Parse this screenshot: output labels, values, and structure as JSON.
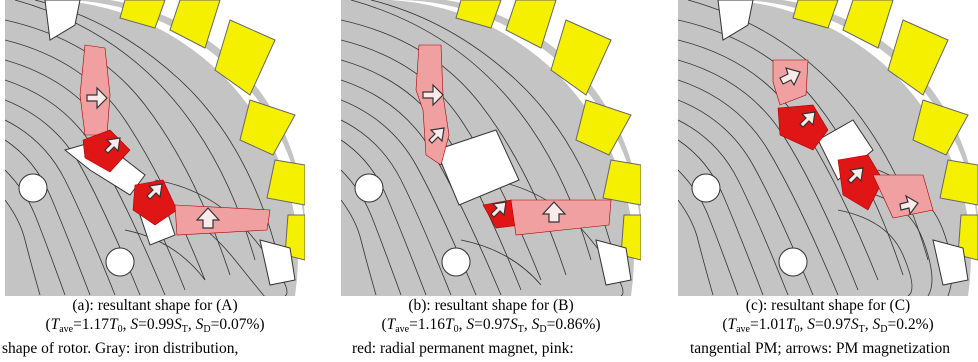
{
  "panels": [
    {
      "caption": "(a): resultant shape for (A)",
      "params": {
        "T_ave": "1.17",
        "S": "0.99",
        "S_D": "0.07%"
      }
    },
    {
      "caption": "(b): resultant shape for (B)",
      "params": {
        "T_ave": "1.16",
        "S": "0.97",
        "S_D": "0.86%"
      }
    },
    {
      "caption": "(c): resultant shape for (C)",
      "params": {
        "T_ave": "1.01",
        "S": "0.97",
        "S_D": "0.2%"
      }
    }
  ],
  "colors": {
    "rotor_core": "#c4c4c4",
    "stator_slot": "#f5f000",
    "magnet_light": "#f0a0a0",
    "magnet_dark": "#e01515",
    "flux_line": "#333333",
    "air": "#ffffff"
  },
  "cutoff_text": {
    "left": "shape of rotor. Gray: iron distribution,",
    "middle": "red: radial permanent magnet, pink:",
    "right": "tangential PM; arrows: PM magnetization"
  }
}
